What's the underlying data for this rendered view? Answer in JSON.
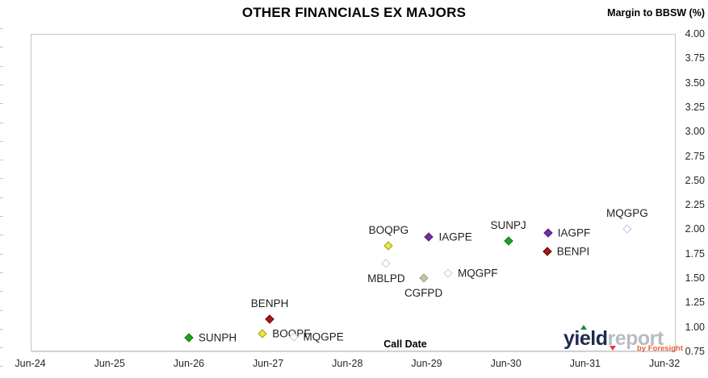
{
  "chart_data": {
    "type": "scatter",
    "title": "OTHER FINANCIALS EX MAJORS",
    "y_axis_title": "Margin to BBSW (%)",
    "x_axis_label": "Call Date",
    "x_ticks": [
      "Jun-24",
      "Jun-25",
      "Jun-26",
      "Jun-27",
      "Jun-28",
      "Jun-29",
      "Jun-30",
      "Jun-31",
      "Jun-32"
    ],
    "y_ticks": [
      "4.00",
      "3.75",
      "3.50",
      "3.25",
      "3.00",
      "2.75",
      "2.50",
      "2.25",
      "2.00",
      "1.75",
      "1.50",
      "1.25",
      "1.00",
      "0.75"
    ],
    "y_range": [
      0.75,
      4.0
    ],
    "grid": "horizontal",
    "legend": "none",
    "marker_styles": {
      "yellow": {
        "fill": "#e9ea3e",
        "border": "#9c9c28"
      },
      "purple": {
        "fill": "#7030a0",
        "border": "#54207a"
      },
      "green": {
        "fill": "#1ea21e",
        "border": "#157815"
      },
      "darkred": {
        "fill": "#b21511",
        "border": "#530a08"
      },
      "lightblue": {
        "fill": "#ffffff",
        "border": "#b8cce4"
      },
      "khaki": {
        "fill": "#c5cc7d",
        "border": "#8aa3c0"
      }
    },
    "points": [
      {
        "label": "SUNPH",
        "years_after_jun24": 2.0,
        "call_date_approx": "Jun-26",
        "margin_pct": 0.89,
        "style": "green",
        "label_pos": "right"
      },
      {
        "label": "BOQPF",
        "years_after_jun24": 2.93,
        "call_date_approx": "May-27",
        "margin_pct": 0.93,
        "style": "yellow",
        "label_pos": "right"
      },
      {
        "label": "MQGPE",
        "years_after_jun24": 3.32,
        "call_date_approx": "Oct-27",
        "margin_pct": 0.9,
        "style": "lightblue",
        "label_pos": "right"
      },
      {
        "label": "BENPH",
        "years_after_jun24": 3.02,
        "call_date_approx": "Jun-27",
        "margin_pct": 1.08,
        "style": "darkred",
        "label_pos": "above"
      },
      {
        "label": "MBLPD",
        "years_after_jun24": 4.49,
        "call_date_approx": "Dec-28",
        "margin_pct": 1.65,
        "style": "lightblue",
        "label_pos": "below"
      },
      {
        "label": "BOQPG",
        "years_after_jun24": 4.52,
        "call_date_approx": "Dec-28",
        "margin_pct": 1.83,
        "style": "yellow",
        "label_pos": "above"
      },
      {
        "label": "CGFPD",
        "years_after_jun24": 4.96,
        "call_date_approx": "May-29",
        "margin_pct": 1.5,
        "style": "khaki",
        "label_pos": "below"
      },
      {
        "label": "IAGPE",
        "years_after_jun24": 5.03,
        "call_date_approx": "Jun-29",
        "margin_pct": 1.92,
        "style": "purple",
        "label_pos": "right"
      },
      {
        "label": "MQGPF",
        "years_after_jun24": 5.27,
        "call_date_approx": "Sep-29",
        "margin_pct": 1.55,
        "style": "lightblue",
        "label_pos": "right"
      },
      {
        "label": "SUNPJ",
        "years_after_jun24": 6.03,
        "call_date_approx": "Jun-30",
        "margin_pct": 1.88,
        "style": "green",
        "label_pos": "above"
      },
      {
        "label": "IAGPF",
        "years_after_jun24": 6.53,
        "call_date_approx": "Dec-30",
        "margin_pct": 1.96,
        "style": "purple",
        "label_pos": "right"
      },
      {
        "label": "BENPI",
        "years_after_jun24": 6.52,
        "call_date_approx": "Dec-30",
        "margin_pct": 1.77,
        "style": "darkred",
        "label_pos": "right"
      },
      {
        "label": "MQGPG",
        "years_after_jun24": 7.53,
        "call_date_approx": "Dec-31",
        "margin_pct": 2.0,
        "style": "lightblue",
        "label_pos": "above"
      }
    ]
  },
  "branding": {
    "logo_primary": "yield",
    "logo_secondary": "report",
    "logo_byline": "by Foresight"
  },
  "colors": {
    "logo_primary": "#1e2a4e",
    "logo_secondary": "#b7bcc2",
    "logo_byline": "#e8623b",
    "logo_up_triangle": "#1e8a3c",
    "logo_down_triangle": "#e03a3a",
    "gridline": "#dcdcdc",
    "plot_border": "#c6c6c6"
  }
}
